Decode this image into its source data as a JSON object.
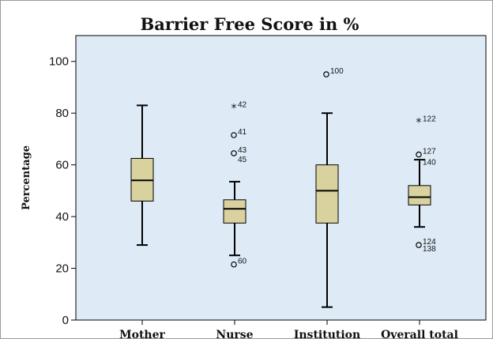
{
  "chart_data": {
    "type": "boxplot",
    "title": "Barrier Free Score in %",
    "ylabel": "Percentage",
    "xlabel": "",
    "ylim": [
      0,
      110
    ],
    "yticks": [
      0,
      20,
      40,
      60,
      80,
      100
    ],
    "grid": false,
    "colors": {
      "plot_bg": "#deebf7",
      "box_fill": "#d9d29f",
      "stroke": "#000000"
    },
    "categories": [
      "Mother",
      "Nurse",
      "Institution",
      "Overall total"
    ],
    "boxes": [
      {
        "category": "Mother",
        "whisker_low": 29,
        "q1": 46,
        "median": 54,
        "q3": 62.5,
        "whisker_high": 83,
        "outliers": []
      },
      {
        "category": "Nurse",
        "whisker_low": 25,
        "q1": 37.5,
        "median": 43,
        "q3": 46.5,
        "whisker_high": 53.5,
        "outliers": [
          {
            "value": 82,
            "label": "42",
            "marker": "star"
          },
          {
            "value": 71.5,
            "label": "41",
            "marker": "circle"
          },
          {
            "value": 64.5,
            "label": "43",
            "marker": "circle"
          },
          {
            "value": 21.5,
            "label": "60",
            "marker": "circle"
          }
        ],
        "extra_labels": [
          {
            "value": 62,
            "label": "45"
          }
        ]
      },
      {
        "category": "Institution",
        "whisker_low": 5,
        "q1": 37.5,
        "median": 50,
        "q3": 60,
        "whisker_high": 80,
        "outliers": [
          {
            "value": 95,
            "label": "100",
            "marker": "circle"
          }
        ]
      },
      {
        "category": "Overall total",
        "whisker_low": 36,
        "q1": 44.5,
        "median": 47.5,
        "q3": 52,
        "whisker_high": 62,
        "outliers": [
          {
            "value": 76.5,
            "label": "122",
            "marker": "star"
          },
          {
            "value": 64,
            "label": "127",
            "marker": "circle"
          },
          {
            "value": 29,
            "label": "124",
            "marker": "circle"
          }
        ],
        "extra_labels": [
          {
            "value": 61,
            "label": "140"
          },
          {
            "value": 27.5,
            "label": "138"
          }
        ]
      }
    ]
  }
}
